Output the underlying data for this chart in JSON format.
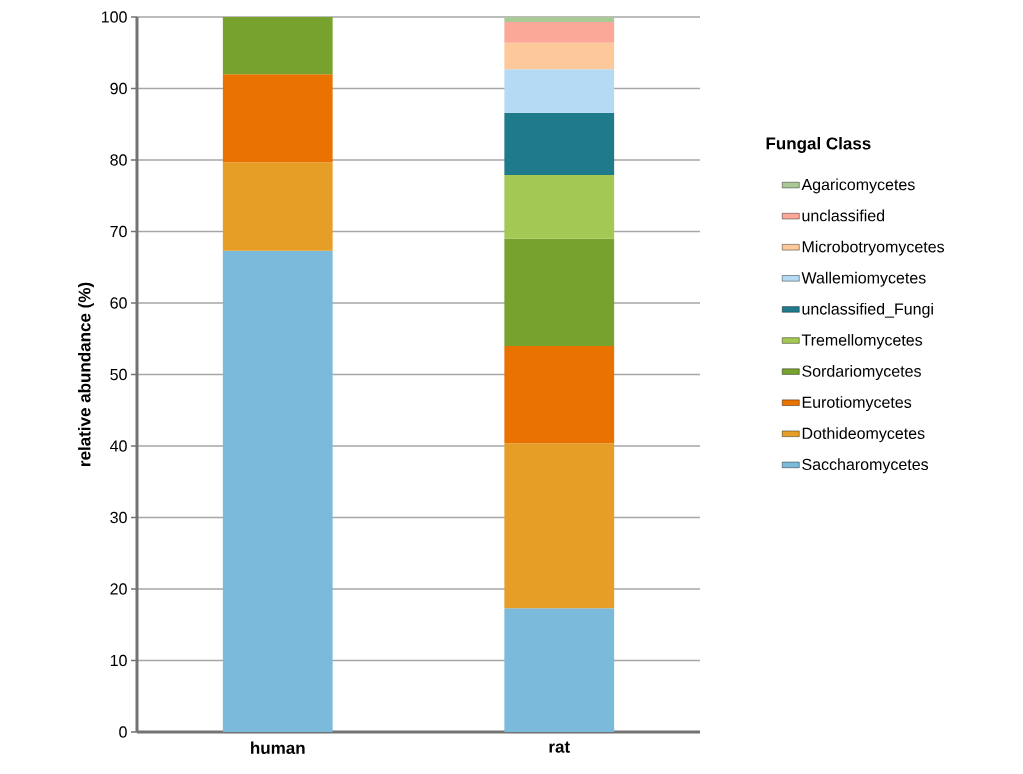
{
  "chart_data": {
    "type": "bar",
    "stacked": true,
    "ylabel": "relative abundance (%)",
    "legend_title": "Fungal Class",
    "categories": [
      "human",
      "rat"
    ],
    "series": [
      {
        "name": "Saccharomycetes",
        "color": "#7bbadb",
        "values": [
          67.3,
          17.3
        ]
      },
      {
        "name": "Dothideomycetes",
        "color": "#e79e27",
        "values": [
          12.4,
          23.1
        ]
      },
      {
        "name": "Eurotiomycetes",
        "color": "#e97200",
        "values": [
          12.3,
          13.6
        ]
      },
      {
        "name": "Sordariomycetes",
        "color": "#76a22d",
        "values": [
          8.0,
          15.0
        ]
      },
      {
        "name": "Tremellomycetes",
        "color": "#a3c853",
        "values": [
          null,
          8.9
        ]
      },
      {
        "name": "unclassified_Fungi",
        "color": "#1f7b8c",
        "values": [
          null,
          8.7
        ]
      },
      {
        "name": "Wallemiomycetes",
        "color": "#b4dbf3",
        "values": [
          null,
          6.1
        ]
      },
      {
        "name": "Microbotryomycetes",
        "color": "#fdc99a",
        "values": [
          null,
          3.7
        ]
      },
      {
        "name": "unclassified",
        "color": "#fba898",
        "values": [
          null,
          2.9
        ]
      },
      {
        "name": "Agaricomycetes",
        "color": "#a9c996",
        "values": [
          null,
          0.7
        ]
      }
    ],
    "ylim": [
      0,
      100
    ],
    "yticks": [
      0,
      10,
      20,
      30,
      40,
      50,
      60,
      70,
      80,
      90,
      100
    ],
    "grid": "y",
    "legend": "right"
  }
}
